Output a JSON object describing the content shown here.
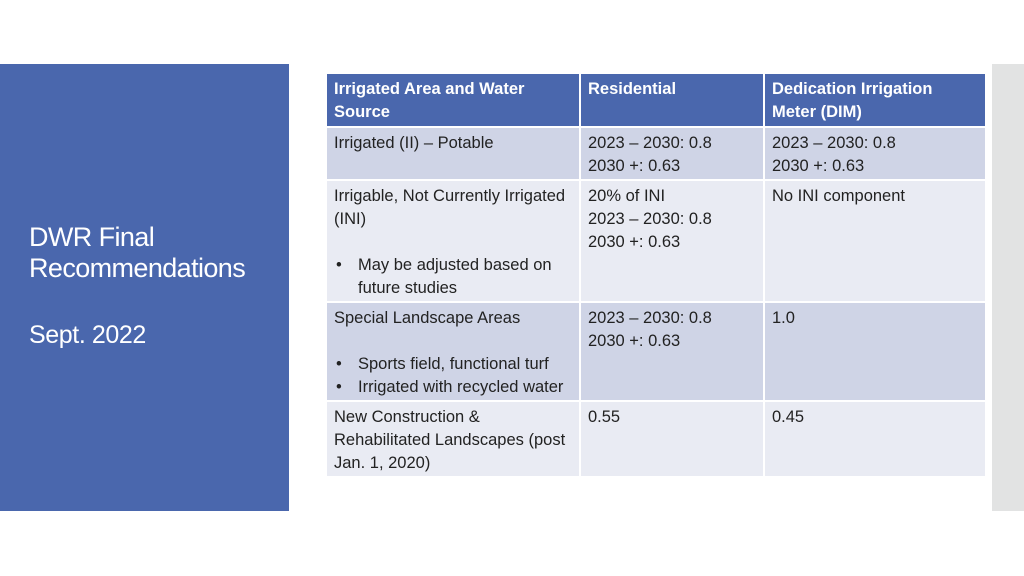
{
  "sidebar": {
    "title_line1": "DWR Final",
    "title_line2": "Recommendations",
    "date": "Sept. 2022"
  },
  "table": {
    "headers": [
      "Irrigated Area and Water Source",
      "Residential",
      "Dedication Irrigation Meter (DIM)"
    ],
    "rows": [
      {
        "area": "Irrigated (II) – Potable",
        "residential": [
          "2023 – 2030: 0.8",
          "2030 +: 0.63"
        ],
        "dim": [
          "2023 – 2030: 0.8",
          "2030 +: 0.63"
        ]
      },
      {
        "area": "Irrigable, Not Currently Irrigated (INI)",
        "bullets": [
          "May be adjusted based on future studies"
        ],
        "residential": [
          "20% of INI",
          "2023 – 2030: 0.8",
          "2030 +: 0.63"
        ],
        "dim": [
          "No INI component"
        ]
      },
      {
        "area": "Special Landscape Areas",
        "bullets": [
          "Sports field, functional turf",
          "Irrigated with recycled water"
        ],
        "residential": [
          "2023 – 2030: 0.8",
          "2030 +: 0.63"
        ],
        "dim": [
          "1.0"
        ]
      },
      {
        "area": "New Construction & Rehabilitated Landscapes (post Jan. 1, 2020)",
        "residential": [
          "0.55"
        ],
        "dim": [
          "0.45"
        ]
      }
    ]
  },
  "colors": {
    "accent": "#4a67ad",
    "row_dark": "#cfd4e6",
    "row_light": "#e9ebf3",
    "right_bar": "#e2e3e3"
  }
}
